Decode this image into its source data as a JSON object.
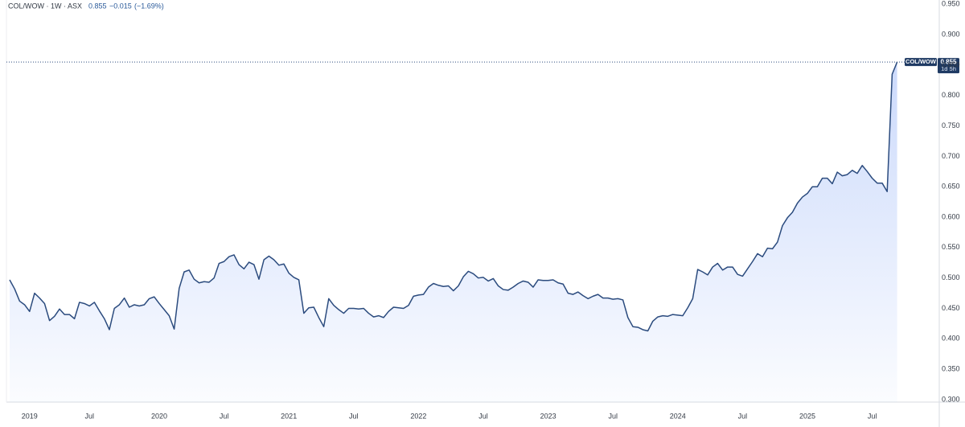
{
  "chart_data": {
    "type": "area",
    "title": "COL/WOW · 1W · ASX",
    "symbol": "COL/WOW",
    "last_price": 0.855,
    "change": "−0.015",
    "change_percent": "(−1.69%)",
    "countdown": "1d 5h",
    "color": "#2b4b7e",
    "fill_color": "#c9d8fb",
    "grid": false,
    "ylim": [
      0.296,
      0.957
    ],
    "yticks": [
      {
        "value": 0.3,
        "label": "0.300"
      },
      {
        "value": 0.35,
        "label": "0.350"
      },
      {
        "value": 0.4,
        "label": "0.400"
      },
      {
        "value": 0.45,
        "label": "0.450"
      },
      {
        "value": 0.5,
        "label": "0.500"
      },
      {
        "value": 0.55,
        "label": "0.550"
      },
      {
        "value": 0.6,
        "label": "0.600"
      },
      {
        "value": 0.65,
        "label": "0.650"
      },
      {
        "value": 0.7,
        "label": "0.700"
      },
      {
        "value": 0.75,
        "label": "0.750"
      },
      {
        "value": 0.8,
        "label": "0.800"
      },
      {
        "value": 0.85,
        "label": "0.850"
      },
      {
        "value": 0.9,
        "label": "0.900"
      },
      {
        "value": 0.95,
        "label": "0.950"
      }
    ],
    "categories": [
      null,
      null,
      null,
      null,
      "2019",
      null,
      null,
      null,
      null,
      null,
      null,
      null,
      null,
      null,
      null,
      null,
      "Jul",
      null,
      null,
      null,
      null,
      null,
      null,
      null,
      null,
      null,
      null,
      null,
      null,
      null,
      "2020",
      null,
      null,
      null,
      null,
      null,
      null,
      null,
      null,
      null,
      null,
      null,
      null,
      "Jul",
      null,
      null,
      null,
      null,
      null,
      null,
      null,
      null,
      null,
      null,
      null,
      null,
      "2021",
      null,
      null,
      null,
      null,
      null,
      null,
      null,
      null,
      null,
      null,
      null,
      null,
      "Jul",
      null,
      null,
      null,
      null,
      null,
      null,
      null,
      null,
      null,
      null,
      null,
      null,
      "2022",
      null,
      null,
      null,
      null,
      null,
      null,
      null,
      null,
      null,
      null,
      null,
      null,
      "Jul",
      null,
      null,
      null,
      null,
      null,
      null,
      null,
      null,
      null,
      null,
      null,
      null,
      "2023",
      null,
      null,
      null,
      null,
      null,
      null,
      null,
      null,
      null,
      null,
      null,
      null,
      "Jul",
      null,
      null,
      null,
      null,
      null,
      null,
      null,
      null,
      null,
      null,
      null,
      null,
      "2024",
      null,
      null,
      null,
      null,
      null,
      null,
      null,
      null,
      null,
      null,
      null,
      null,
      "Jul",
      null,
      null,
      null,
      null,
      null,
      null,
      null,
      null,
      null,
      null,
      null,
      null,
      "2025",
      null,
      null,
      null,
      null,
      null,
      null,
      null,
      null,
      null,
      null,
      null,
      null,
      "Jul",
      null,
      null,
      null,
      null,
      null
    ],
    "values": [
      0.497,
      0.482,
      0.462,
      0.456,
      0.445,
      0.475,
      0.467,
      0.458,
      0.43,
      0.437,
      0.449,
      0.44,
      0.44,
      0.433,
      0.46,
      0.458,
      0.454,
      0.46,
      0.446,
      0.433,
      0.415,
      0.45,
      0.456,
      0.467,
      0.452,
      0.456,
      0.454,
      0.456,
      0.466,
      0.469,
      0.458,
      0.448,
      0.438,
      0.416,
      0.483,
      0.51,
      0.513,
      0.498,
      0.492,
      0.494,
      0.493,
      0.5,
      0.524,
      0.527,
      0.535,
      0.538,
      0.522,
      0.515,
      0.526,
      0.522,
      0.498,
      0.53,
      0.536,
      0.53,
      0.521,
      0.523,
      0.508,
      0.501,
      0.497,
      0.442,
      0.451,
      0.452,
      0.435,
      0.42,
      0.466,
      0.455,
      0.448,
      0.442,
      0.45,
      0.45,
      0.449,
      0.45,
      0.442,
      0.436,
      0.438,
      0.435,
      0.445,
      0.452,
      0.451,
      0.45,
      0.455,
      0.47,
      0.472,
      0.473,
      0.485,
      0.491,
      0.488,
      0.486,
      0.487,
      0.479,
      0.487,
      0.502,
      0.511,
      0.507,
      0.5,
      0.501,
      0.495,
      0.499,
      0.487,
      0.481,
      0.48,
      0.485,
      0.491,
      0.495,
      0.493,
      0.485,
      0.497,
      0.496,
      0.496,
      0.497,
      0.492,
      0.49,
      0.475,
      0.473,
      0.477,
      0.471,
      0.466,
      0.47,
      0.473,
      0.467,
      0.467,
      0.465,
      0.466,
      0.464,
      0.435,
      0.42,
      0.419,
      0.415,
      0.413,
      0.429,
      0.436,
      0.438,
      0.437,
      0.44,
      0.439,
      0.438,
      0.451,
      0.466,
      0.514,
      0.51,
      0.505,
      0.518,
      0.524,
      0.513,
      0.518,
      0.518,
      0.506,
      0.503,
      0.515,
      0.527,
      0.54,
      0.535,
      0.549,
      0.548,
      0.559,
      0.586,
      0.599,
      0.608,
      0.623,
      0.633,
      0.639,
      0.65,
      0.65,
      0.664,
      0.664,
      0.655,
      0.674,
      0.668,
      0.67,
      0.677,
      0.672,
      0.685,
      0.675,
      0.664,
      0.656,
      0.656,
      0.642,
      0.835,
      0.855
    ]
  }
}
